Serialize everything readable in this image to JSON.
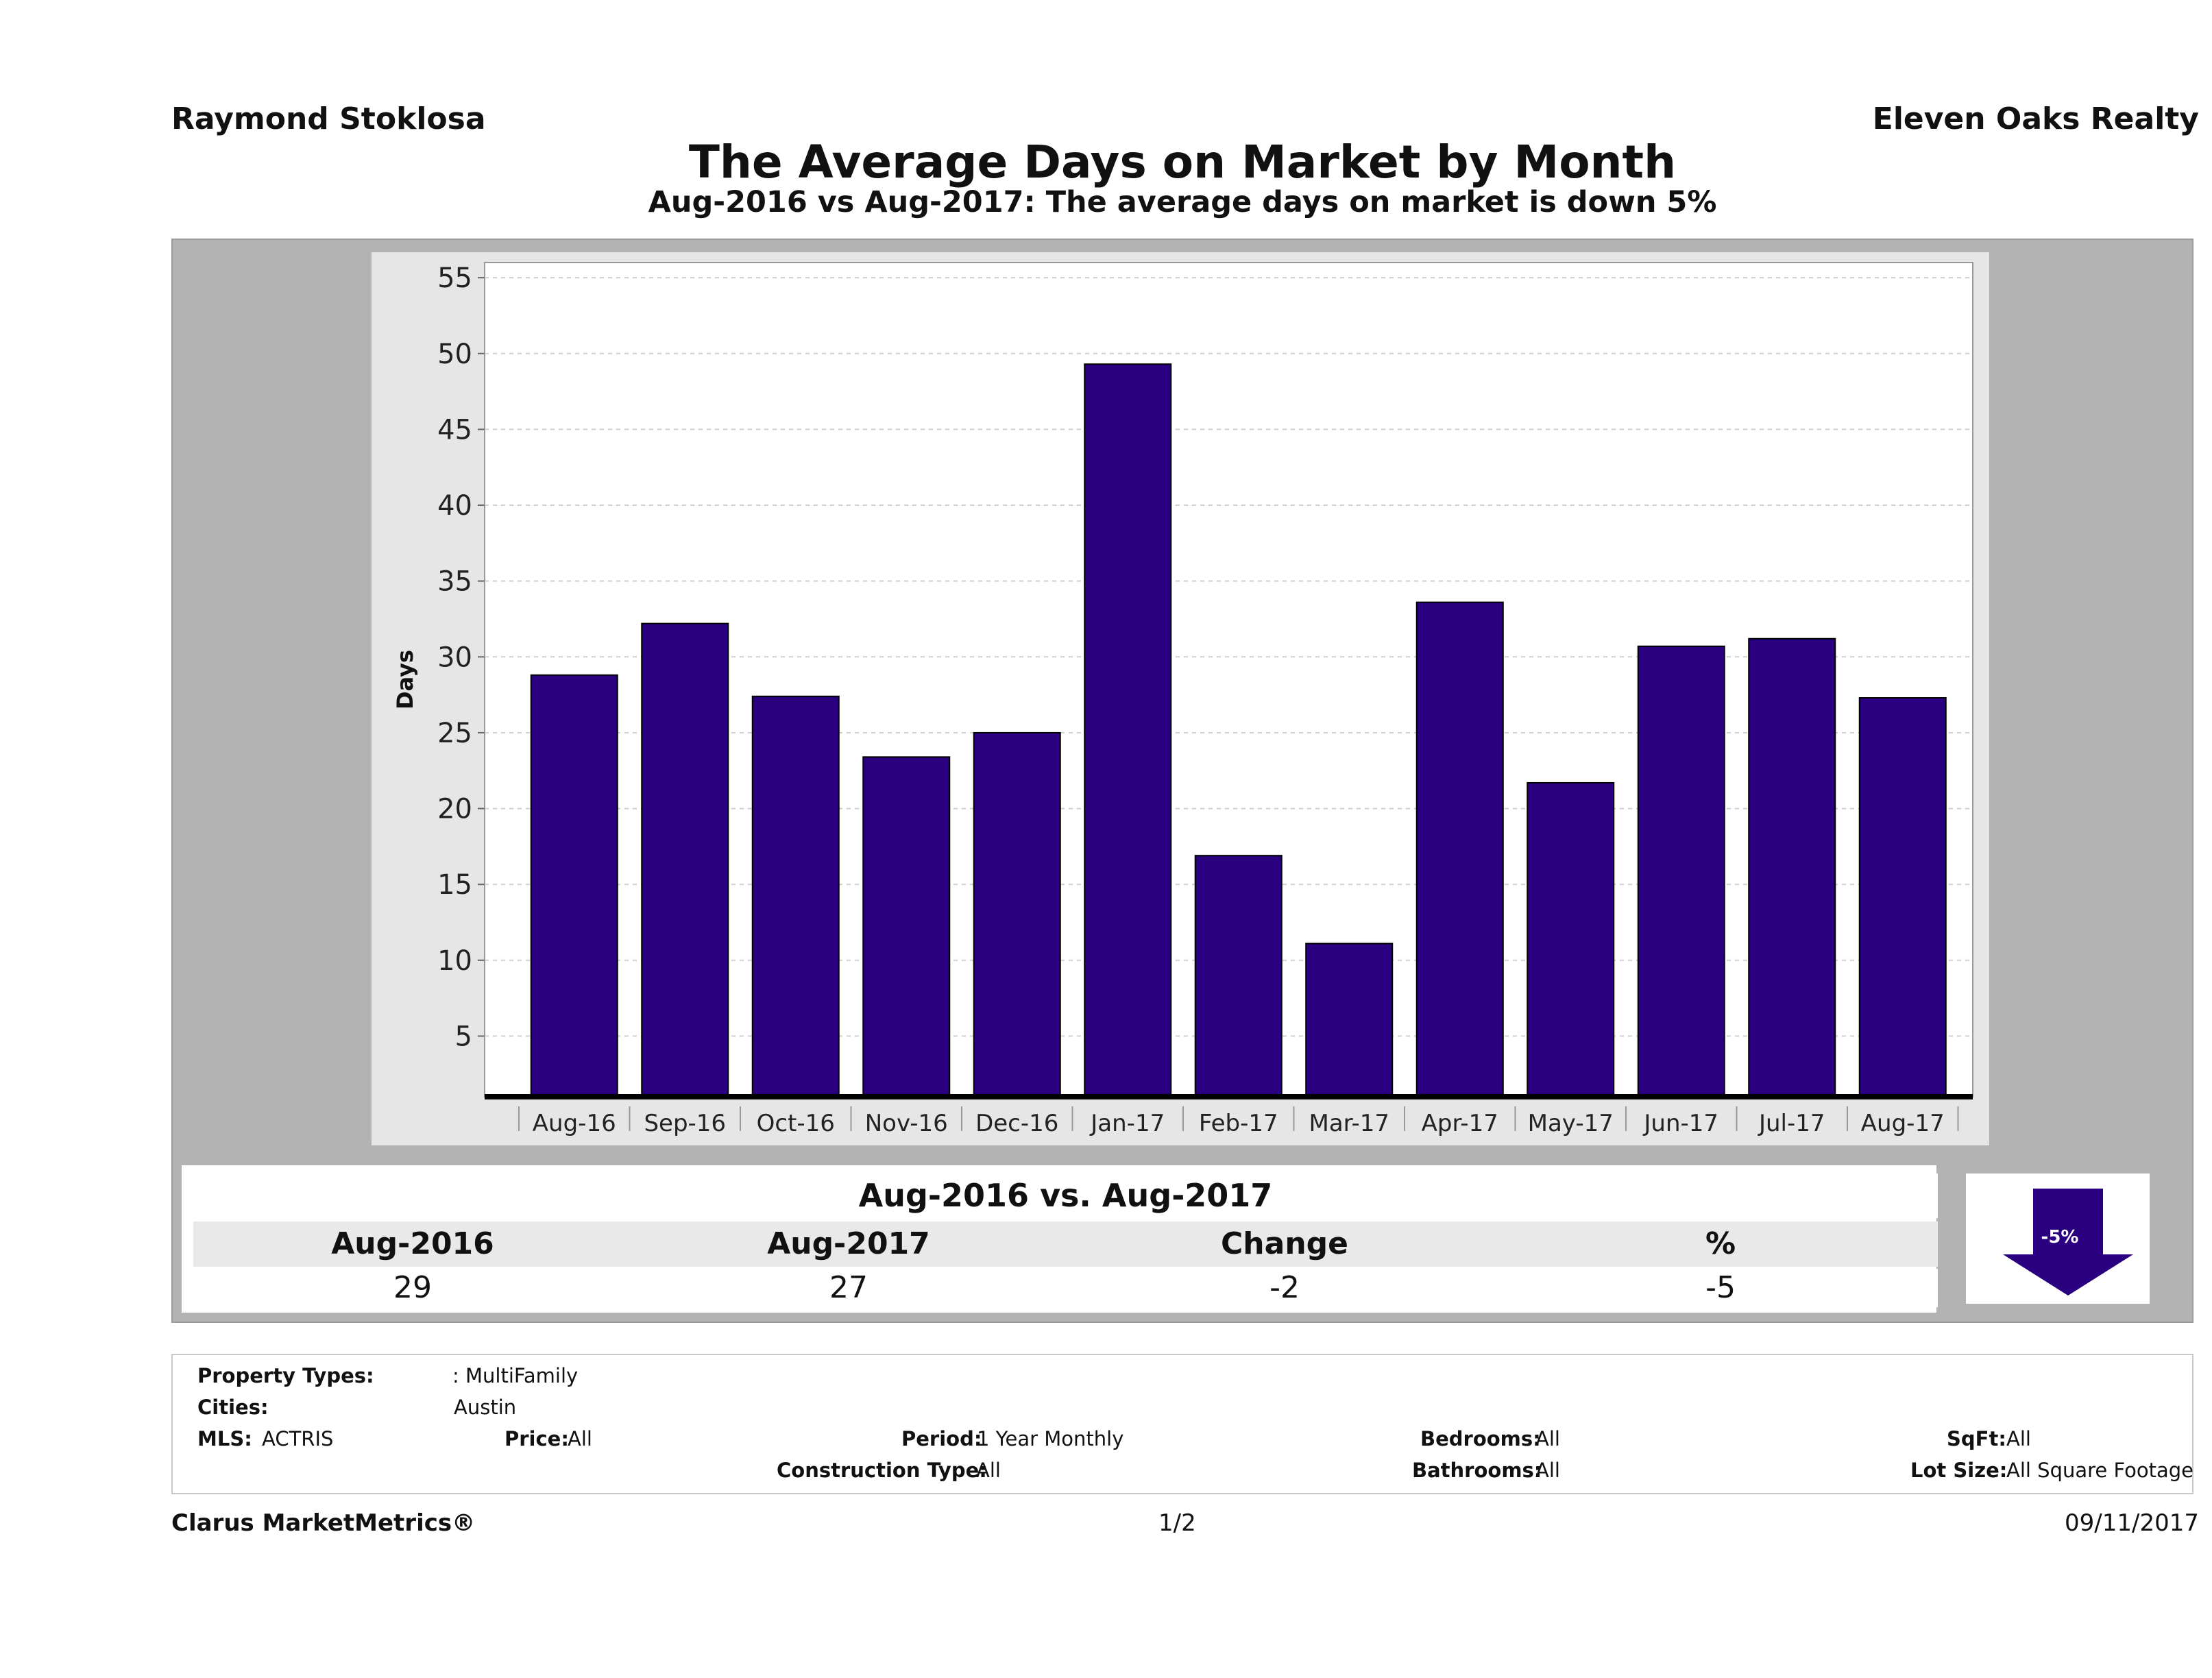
{
  "header": {
    "agent": "Raymond Stoklosa",
    "company": "Eleven Oaks Realty",
    "title": "The Average Days on Market by Month",
    "subtitle": "Aug-2016 vs Aug-2017: The average days on market is down 5%"
  },
  "chart_data": {
    "type": "bar",
    "ylabel": "Days",
    "xlabel": "",
    "ylim": [
      1,
      56
    ],
    "yticks": [
      5,
      10,
      15,
      20,
      25,
      30,
      35,
      40,
      45,
      50,
      55
    ],
    "grid": true,
    "bar_color": "#2a0080",
    "categories": [
      "Aug-16",
      "Sep-16",
      "Oct-16",
      "Nov-16",
      "Dec-16",
      "Jan-17",
      "Feb-17",
      "Mar-17",
      "Apr-17",
      "May-17",
      "Jun-17",
      "Jul-17",
      "Aug-17"
    ],
    "values": [
      28.8,
      32.2,
      27.4,
      23.4,
      25.0,
      49.3,
      16.9,
      11.1,
      33.6,
      21.7,
      30.7,
      31.2,
      27.3
    ]
  },
  "comparison": {
    "title": "Aug-2016 vs. Aug-2017",
    "headers": [
      "Aug-2016",
      "Aug-2017",
      "Change",
      "%"
    ],
    "values": [
      "29",
      "27",
      "-2",
      "-5"
    ],
    "badge": "-5%",
    "arrow_color": "#2a0080"
  },
  "filters": {
    "property_types_label": "Property Types:",
    "property_types_value": ": MultiFamily",
    "cities_label": "Cities:",
    "cities_value": "Austin",
    "mls_label": "MLS:",
    "mls_value": "ACTRIS",
    "price_label": "Price:",
    "price_value": "All",
    "period_label": "Period:",
    "period_value": "1 Year Monthly",
    "construction_label": "Construction Type:",
    "construction_value": "All",
    "bedrooms_label": "Bedrooms:",
    "bedrooms_value": "All",
    "bathrooms_label": "Bathrooms:",
    "bathrooms_value": "All",
    "sqft_label": "SqFt:",
    "sqft_value": "All",
    "lotsize_label": "Lot Size:",
    "lotsize_value": "All Square Footage"
  },
  "footer": {
    "brand": "Clarus MarketMetrics®",
    "page": "1/2",
    "date": "09/11/2017"
  }
}
